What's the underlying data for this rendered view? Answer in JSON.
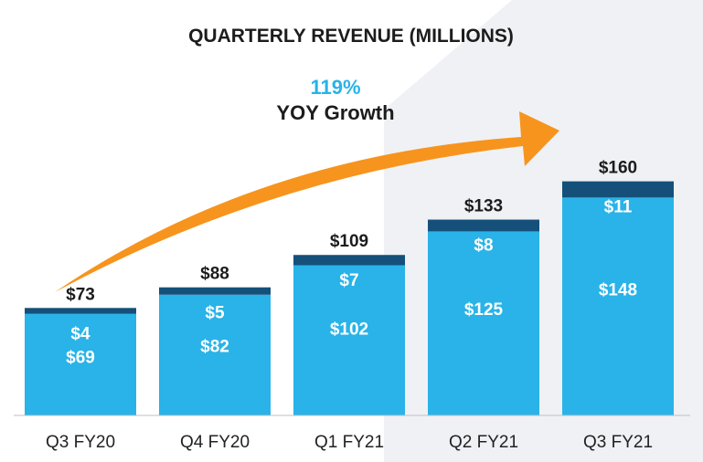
{
  "chart_data": {
    "type": "bar",
    "stacked": true,
    "title": "QUARTERLY REVENUE (MILLIONS)",
    "categories": [
      "Q3 FY20",
      "Q4 FY20",
      "Q1 FY21",
      "Q2 FY21",
      "Q3 FY21"
    ],
    "series": [
      {
        "name": "base",
        "values": [
          69,
          82,
          102,
          125,
          148
        ],
        "labels": [
          "$69",
          "$82",
          "$102",
          "$125",
          "$148"
        ]
      },
      {
        "name": "top",
        "values": [
          4,
          5,
          7,
          8,
          11
        ],
        "labels": [
          "$4",
          "$5",
          "$7",
          "$8",
          "$11"
        ]
      }
    ],
    "totals": [
      73,
      88,
      109,
      133,
      160
    ],
    "total_labels": [
      "$73",
      "$88",
      "$109",
      "$133",
      "$160"
    ],
    "annotation": {
      "percent": "119%",
      "label": "YOY Growth"
    },
    "xlabel": "",
    "ylabel": "",
    "ylim": [
      0,
      160
    ],
    "grid": false,
    "legend": "none"
  },
  "colors": {
    "base": "#29b3e8",
    "top": "#14507a",
    "arrow": "#f7941d",
    "percent": "#29b3e8",
    "background_shape": "#eff1f5",
    "axis": "#bfbfbf"
  }
}
